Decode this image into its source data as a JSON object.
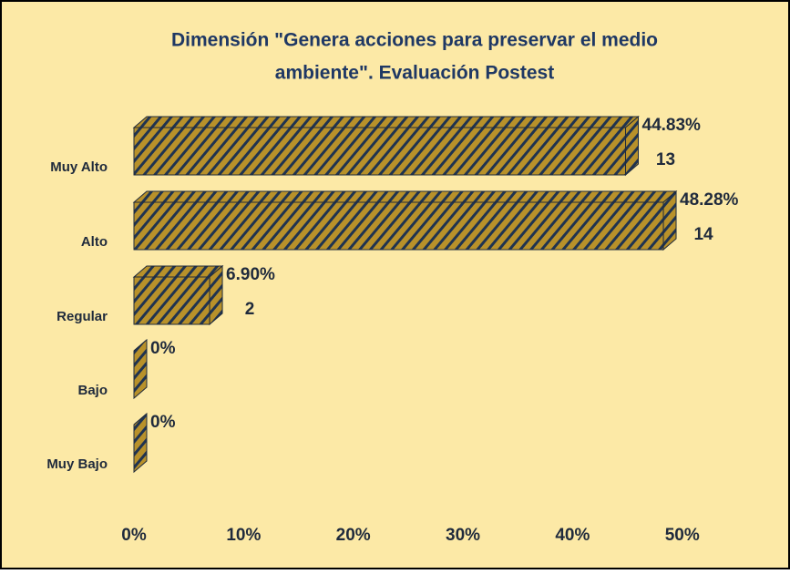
{
  "chart_data": {
    "type": "bar",
    "orientation": "horizontal",
    "title": [
      "Dimensión \"Genera acciones para preservar el medio",
      "ambiente\". Evaluación Postest"
    ],
    "categories": [
      "Muy Alto",
      "Alto",
      "Regular",
      "Bajo",
      "Muy Bajo"
    ],
    "values": [
      44.83,
      48.28,
      6.9,
      0,
      0
    ],
    "value_labels": [
      "44.83%",
      "48.28%",
      "6.90%",
      "0%",
      "0%"
    ],
    "counts": [
      13,
      14,
      2,
      null,
      null
    ],
    "color": "#b8912a",
    "hatch_color": "#1f3350",
    "xlim": [
      0,
      58
    ],
    "xticks": [
      {
        "value": 0,
        "label": "0%"
      },
      {
        "value": 10,
        "label": "10%"
      },
      {
        "value": 20,
        "label": "20%"
      },
      {
        "value": 30,
        "label": "30%"
      },
      {
        "value": 40,
        "label": "40%"
      },
      {
        "value": 50,
        "label": "50%"
      }
    ],
    "grid": false
  }
}
